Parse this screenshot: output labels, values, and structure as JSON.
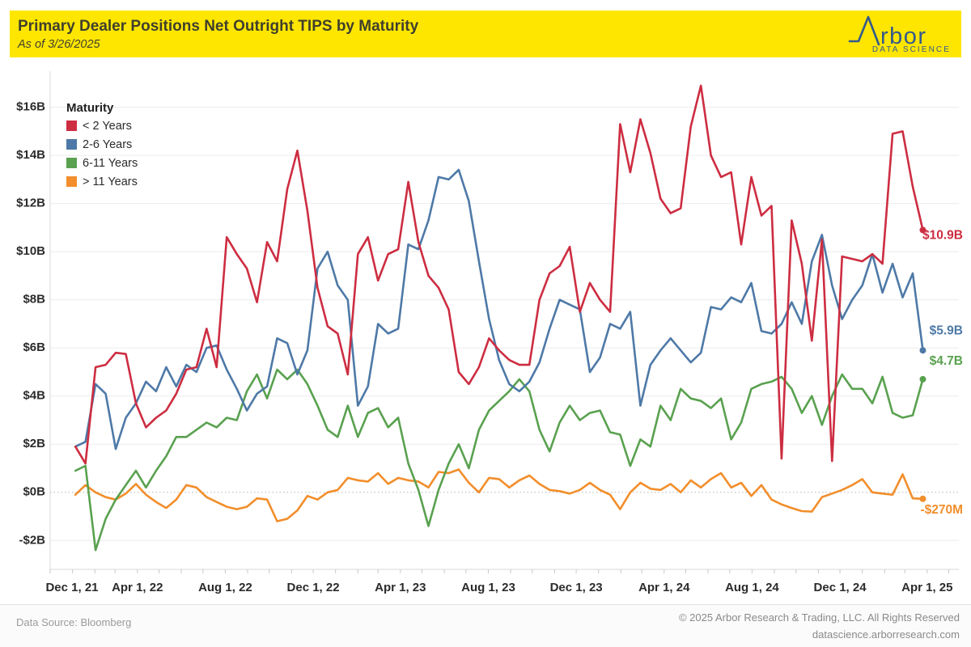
{
  "header": {
    "title": "Primary Dealer Positions Net Outright TIPS by Maturity",
    "subtitle": "As of 3/26/2025",
    "background": "#FFE600",
    "text_color": "#3F3F2D",
    "logo": {
      "name": "rbor",
      "subtext": "DATA SCIENCE",
      "color": "#335A8C"
    }
  },
  "footer": {
    "source": "Data Source: Bloomberg",
    "copyright": "© 2025 Arbor Research & Trading, LLC. All Rights Reserved",
    "website": "datascience.arborresearch.com"
  },
  "chart_data": {
    "type": "line",
    "title": "Primary Dealer Positions Net Outright TIPS by Maturity",
    "xlabel": "",
    "ylabel": "",
    "grid": "horizontal",
    "zero_line": "dotted",
    "legend": {
      "title": "Maturity",
      "position": "top-left"
    },
    "x_domain": [
      "2021-12-01",
      "2025-05-15"
    ],
    "ylim": [
      -3.2,
      17.5
    ],
    "y_ticks": [
      {
        "value": 16,
        "label": "$16B"
      },
      {
        "value": 14,
        "label": "$14B"
      },
      {
        "value": 12,
        "label": "$12B"
      },
      {
        "value": 10,
        "label": "$10B"
      },
      {
        "value": 8,
        "label": "$8B"
      },
      {
        "value": 6,
        "label": "$6B"
      },
      {
        "value": 4,
        "label": "$4B"
      },
      {
        "value": 2,
        "label": "$2B"
      },
      {
        "value": 0,
        "label": "$0B"
      },
      {
        "value": -2,
        "label": "-$2B"
      }
    ],
    "x_ticks": [
      {
        "date": "2021-12-01",
        "label": "Dec 1, 21"
      },
      {
        "date": "2022-04-01",
        "label": "Apr 1, 22"
      },
      {
        "date": "2022-08-01",
        "label": "Aug 1, 22"
      },
      {
        "date": "2022-12-01",
        "label": "Dec 1, 22"
      },
      {
        "date": "2023-04-01",
        "label": "Apr 1, 23"
      },
      {
        "date": "2023-08-01",
        "label": "Aug 1, 23"
      },
      {
        "date": "2023-12-01",
        "label": "Dec 1, 23"
      },
      {
        "date": "2024-04-01",
        "label": "Apr 1, 24"
      },
      {
        "date": "2024-08-01",
        "label": "Aug 1, 24"
      },
      {
        "date": "2024-12-01",
        "label": "Dec 1, 24"
      },
      {
        "date": "2025-04-01",
        "label": "Apr 1, 25"
      }
    ],
    "dates": [
      "2022-01-05",
      "2022-01-19",
      "2022-02-02",
      "2022-02-16",
      "2022-03-02",
      "2022-03-16",
      "2022-03-30",
      "2022-04-13",
      "2022-04-27",
      "2022-05-11",
      "2022-05-25",
      "2022-06-08",
      "2022-06-22",
      "2022-07-06",
      "2022-07-20",
      "2022-08-03",
      "2022-08-17",
      "2022-08-31",
      "2022-09-14",
      "2022-09-28",
      "2022-10-12",
      "2022-10-26",
      "2022-11-09",
      "2022-11-23",
      "2022-12-07",
      "2022-12-21",
      "2023-01-04",
      "2023-01-18",
      "2023-02-01",
      "2023-02-15",
      "2023-03-01",
      "2023-03-15",
      "2023-03-29",
      "2023-04-12",
      "2023-04-26",
      "2023-05-10",
      "2023-05-24",
      "2023-06-07",
      "2023-06-21",
      "2023-07-05",
      "2023-07-19",
      "2023-08-02",
      "2023-08-16",
      "2023-08-30",
      "2023-09-13",
      "2023-09-27",
      "2023-10-11",
      "2023-10-25",
      "2023-11-08",
      "2023-11-22",
      "2023-12-06",
      "2023-12-20",
      "2024-01-03",
      "2024-01-17",
      "2024-01-31",
      "2024-02-14",
      "2024-02-28",
      "2024-03-13",
      "2024-03-27",
      "2024-04-10",
      "2024-04-24",
      "2024-05-08",
      "2024-05-22",
      "2024-06-05",
      "2024-06-19",
      "2024-07-03",
      "2024-07-17",
      "2024-07-31",
      "2024-08-14",
      "2024-08-28",
      "2024-09-11",
      "2024-09-25",
      "2024-10-09",
      "2024-10-23",
      "2024-11-06",
      "2024-11-20",
      "2024-12-04",
      "2024-12-18",
      "2025-01-01",
      "2025-01-15",
      "2025-01-29",
      "2025-02-12",
      "2025-02-26",
      "2025-03-12",
      "2025-03-26"
    ],
    "series": [
      {
        "name": "< 2 Years",
        "color": "#CD2D41",
        "end_label": "$10.9B",
        "label_dy": 7,
        "values": [
          1.9,
          1.2,
          5.2,
          5.3,
          5.8,
          5.75,
          3.7,
          2.7,
          3.1,
          3.4,
          4.1,
          5.1,
          5.2,
          6.8,
          5.2,
          10.6,
          9.9,
          9.3,
          7.9,
          10.4,
          9.6,
          12.6,
          14.2,
          11.7,
          8.5,
          6.9,
          6.6,
          4.9,
          9.9,
          10.6,
          8.8,
          9.9,
          10.1,
          12.9,
          10.4,
          9.0,
          8.5,
          7.6,
          5.0,
          4.5,
          5.2,
          6.4,
          5.9,
          5.5,
          5.3,
          5.3,
          8.0,
          9.1,
          9.4,
          10.2,
          7.5,
          8.7,
          8.0,
          7.5,
          15.3,
          13.3,
          15.5,
          14.1,
          12.2,
          11.6,
          11.8,
          15.2,
          16.9,
          14.0,
          13.1,
          13.3,
          10.3,
          13.1,
          11.5,
          11.9,
          1.4,
          11.3,
          9.5,
          6.3,
          10.5,
          1.3,
          9.8,
          9.7,
          9.6,
          9.9,
          9.5,
          14.9,
          15.0,
          12.7,
          10.9
        ]
      },
      {
        "name": "2-6 Years",
        "color": "#4E79A7",
        "end_label": "$5.9B",
        "label_dy": -24,
        "values": [
          1.9,
          2.1,
          4.5,
          4.1,
          1.8,
          3.1,
          3.7,
          4.6,
          4.2,
          5.2,
          4.4,
          5.3,
          5.0,
          6.0,
          6.1,
          5.1,
          4.3,
          3.4,
          4.1,
          4.4,
          6.4,
          6.2,
          4.9,
          5.9,
          9.3,
          10.0,
          8.6,
          8.0,
          3.6,
          4.4,
          7.0,
          6.6,
          6.8,
          10.3,
          10.1,
          11.3,
          13.1,
          13.0,
          13.4,
          12.1,
          9.6,
          7.2,
          5.5,
          4.5,
          4.2,
          4.6,
          5.4,
          6.8,
          8.0,
          7.8,
          7.6,
          5.0,
          5.6,
          7.0,
          6.8,
          7.5,
          3.6,
          5.3,
          5.9,
          6.4,
          5.9,
          5.4,
          5.8,
          7.7,
          7.6,
          8.1,
          7.9,
          8.7,
          6.7,
          6.6,
          7.0,
          7.9,
          7.0,
          9.6,
          10.7,
          8.6,
          7.2,
          8.0,
          8.6,
          9.9,
          8.3,
          9.5,
          8.1,
          9.1,
          5.9
        ]
      },
      {
        "name": "6-11 Years",
        "color": "#59A14F",
        "end_label": "$4.7B",
        "label_dy": -22,
        "values": [
          0.9,
          1.1,
          -2.4,
          -1.1,
          -0.3,
          0.3,
          0.9,
          0.2,
          0.9,
          1.5,
          2.3,
          2.3,
          2.6,
          2.9,
          2.7,
          3.1,
          3.0,
          4.2,
          4.9,
          3.9,
          5.1,
          4.7,
          5.1,
          4.5,
          3.6,
          2.6,
          2.3,
          3.6,
          2.3,
          3.3,
          3.5,
          2.7,
          3.1,
          1.2,
          0.1,
          -1.4,
          0.1,
          1.2,
          2.0,
          1.0,
          2.6,
          3.4,
          3.8,
          4.2,
          4.7,
          4.2,
          2.6,
          1.7,
          2.9,
          3.6,
          3.0,
          3.3,
          3.4,
          2.5,
          2.4,
          1.1,
          2.2,
          1.9,
          3.6,
          3.0,
          4.3,
          3.9,
          3.8,
          3.5,
          3.9,
          2.2,
          2.9,
          4.3,
          4.5,
          4.6,
          4.8,
          4.3,
          3.3,
          4.0,
          2.8,
          4.0,
          4.9,
          4.3,
          4.3,
          3.7,
          4.8,
          3.3,
          3.1,
          3.2,
          4.7
        ]
      },
      {
        "name": "> 11 Years",
        "color": "#F28E2B",
        "end_label": "-$270M",
        "label_dy": 14,
        "values": [
          -0.1,
          0.3,
          0.0,
          -0.2,
          -0.3,
          -0.05,
          0.35,
          -0.1,
          -0.4,
          -0.65,
          -0.3,
          0.3,
          0.2,
          -0.2,
          -0.4,
          -0.6,
          -0.7,
          -0.6,
          -0.25,
          -0.3,
          -1.2,
          -1.1,
          -0.75,
          -0.15,
          -0.3,
          0.0,
          0.1,
          0.6,
          0.5,
          0.45,
          0.8,
          0.35,
          0.6,
          0.5,
          0.45,
          0.2,
          0.85,
          0.8,
          0.95,
          0.4,
          0.0,
          0.6,
          0.55,
          0.2,
          0.5,
          0.7,
          0.35,
          0.1,
          0.05,
          -0.05,
          0.1,
          0.4,
          0.1,
          -0.1,
          -0.7,
          0.0,
          0.4,
          0.15,
          0.1,
          0.35,
          0.0,
          0.5,
          0.2,
          0.55,
          0.8,
          0.2,
          0.4,
          -0.15,
          0.3,
          -0.3,
          -0.5,
          -0.65,
          -0.78,
          -0.8,
          -0.2,
          -0.05,
          0.1,
          0.3,
          0.55,
          0.0,
          -0.05,
          -0.1,
          0.75,
          -0.25,
          -0.27
        ]
      }
    ]
  }
}
